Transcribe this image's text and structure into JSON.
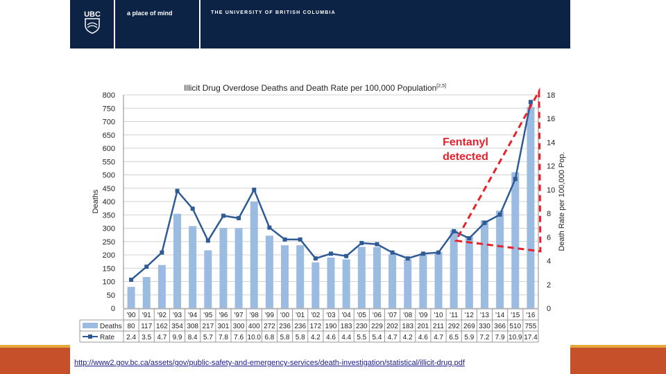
{
  "header": {
    "logo_text": "UBC",
    "tagline": "a place of mind",
    "university": "THE UNIVERSITY OF BRITISH COLUMBIA"
  },
  "source_link": "http://www2.gov.bc.ca/assets/gov/public-safety-and-emergency-services/death-investigation/statistical/illicit-drug.pdf",
  "colors": {
    "header_bg": "#0c2345",
    "bar": "#9bbbe0",
    "line": "#2e5b95",
    "annotation": "#e8202a",
    "footer": "#c5502a"
  },
  "chart_data": {
    "type": "bar",
    "title": "Illicit Drug Overdose Deaths and Death Rate per 100,000 Population",
    "title_superscript": "[2,5]",
    "categories": [
      "'90",
      "'91",
      "'92",
      "'93",
      "'94",
      "'95",
      "'96",
      "'97",
      "'98",
      "'99",
      "'00",
      "'01",
      "'02",
      "'03",
      "'04",
      "'05",
      "'06",
      "'07",
      "'08",
      "'09",
      "'10",
      "'11",
      "'12",
      "'13",
      "'14",
      "'15",
      "'16"
    ],
    "series": [
      {
        "name": "Deaths",
        "type": "bar",
        "axis": "left",
        "values": [
          80,
          117,
          162,
          354,
          308,
          217,
          301,
          300,
          400,
          272,
          236,
          236,
          172,
          190,
          183,
          230,
          229,
          202,
          183,
          201,
          211,
          292,
          269,
          330,
          366,
          510,
          755
        ]
      },
      {
        "name": "Rate",
        "type": "line",
        "axis": "right",
        "values": [
          2.4,
          3.5,
          4.7,
          9.9,
          8.4,
          5.7,
          7.8,
          7.6,
          10.0,
          6.8,
          5.8,
          5.8,
          4.2,
          4.6,
          4.4,
          5.5,
          5.4,
          4.7,
          4.2,
          4.6,
          4.7,
          6.5,
          5.9,
          7.2,
          7.9,
          10.9,
          17.4
        ]
      }
    ],
    "ylabel": "Deaths",
    "y2label": "Death Rate per 100,000 Pop.",
    "ylim": [
      0,
      800
    ],
    "y2lim": [
      0,
      18
    ],
    "yticks": [
      0,
      50,
      100,
      150,
      200,
      250,
      300,
      350,
      400,
      450,
      500,
      550,
      600,
      650,
      700,
      750,
      800
    ],
    "y2ticks": [
      0,
      2,
      4,
      6,
      8,
      10,
      12,
      14,
      16,
      18
    ],
    "grid": true,
    "legend": "data-table",
    "annotation": "Fentanyl\ndetected"
  }
}
